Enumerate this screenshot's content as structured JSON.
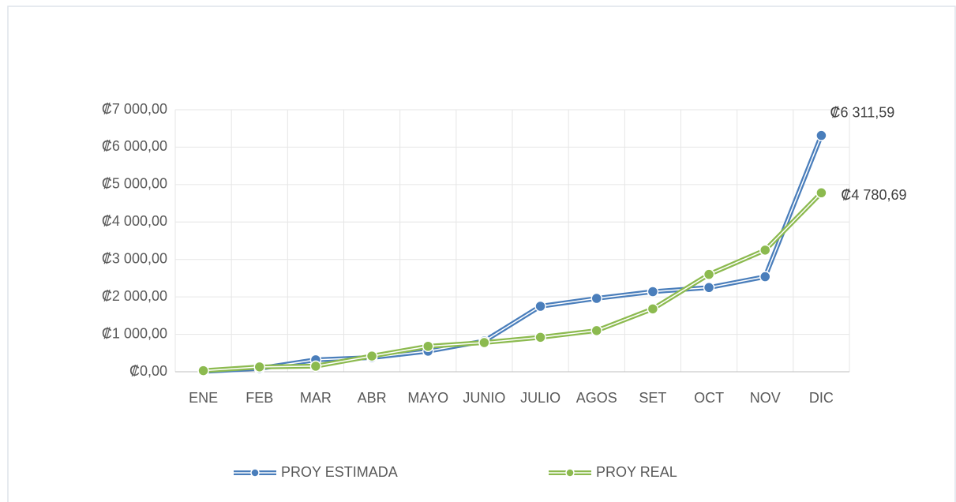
{
  "chart_data": {
    "type": "line",
    "categories": [
      "ENE",
      "FEB",
      "MAR",
      "ABR",
      "MAYO",
      "JUNIO",
      "JULIO",
      "AGOS",
      "SET",
      "OCT",
      "NOV",
      "DIC"
    ],
    "series": [
      {
        "name": "PROY ESTIMADA",
        "color": "#4a7ebb",
        "values": [
          10,
          90,
          320,
          380,
          550,
          820,
          1750,
          1960,
          2140,
          2250,
          2540,
          6311.59
        ],
        "value_labels": [
          null,
          null,
          null,
          null,
          null,
          null,
          null,
          null,
          null,
          null,
          null,
          "₡6 311,59"
        ]
      },
      {
        "name": "PROY REAL",
        "color": "#8cba4f",
        "values": [
          30,
          130,
          150,
          420,
          680,
          780,
          920,
          1100,
          1680,
          2600,
          3250,
          4780.69
        ],
        "value_labels": [
          null,
          null,
          null,
          null,
          null,
          null,
          null,
          null,
          null,
          null,
          null,
          "₡4 780,69"
        ]
      }
    ],
    "ylim": [
      0,
      7000
    ],
    "yticks": [
      {
        "value": 0,
        "label": "₡0,00"
      },
      {
        "value": 1000,
        "label": "₡1 000,00"
      },
      {
        "value": 2000,
        "label": "₡2 000,00"
      },
      {
        "value": 3000,
        "label": "₡3 000,00"
      },
      {
        "value": 4000,
        "label": "₡4 000,00"
      },
      {
        "value": 5000,
        "label": "₡5 000,00"
      },
      {
        "value": 6000,
        "label": "₡6 000,00"
      },
      {
        "value": 7000,
        "label": "₡7 000,00"
      }
    ],
    "grid": true,
    "legend": "bottom"
  }
}
